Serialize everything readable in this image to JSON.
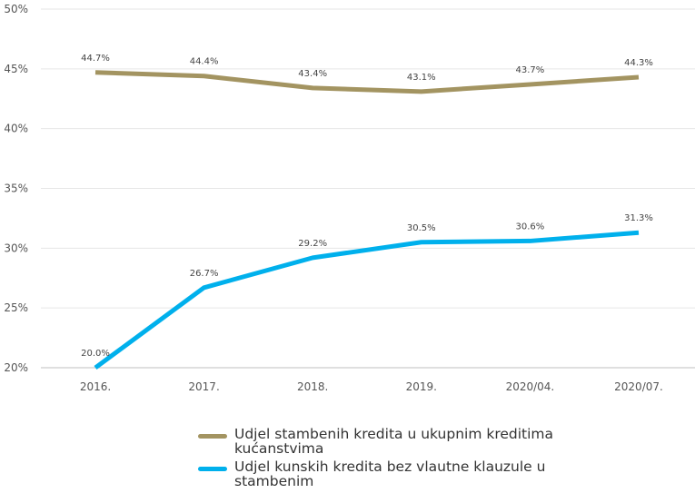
{
  "chart_data": {
    "type": "line",
    "categories": [
      "2016.",
      "2017.",
      "2018.",
      "2019.",
      "2020/04.",
      "2020/07."
    ],
    "ylim": [
      20,
      50
    ],
    "yticks": [
      "20%",
      "25%",
      "30%",
      "35%",
      "40%",
      "45%",
      "50%"
    ],
    "yticks_values": [
      20,
      25,
      30,
      35,
      40,
      45,
      50
    ],
    "grid": true,
    "legend_position": "bottom",
    "series": [
      {
        "name": "Udjel stambenih kredita u ukupnim kreditima kućanstvima",
        "color": "#a39461",
        "values": [
          44.7,
          44.4,
          43.4,
          43.1,
          43.7,
          44.3
        ],
        "labels": [
          "44.7%",
          "44.4%",
          "43.4%",
          "43.1%",
          "43.7%",
          "44.3%"
        ]
      },
      {
        "name": "Udjel kunskih kredita bez vlautne klauzule u stambenim",
        "color": "#00b0ec",
        "values": [
          20.0,
          26.7,
          29.2,
          30.5,
          30.6,
          31.3
        ],
        "labels": [
          "20.0%",
          "26.7%",
          "29.2%",
          "30.5%",
          "30.6%",
          "31.3%"
        ]
      }
    ]
  }
}
